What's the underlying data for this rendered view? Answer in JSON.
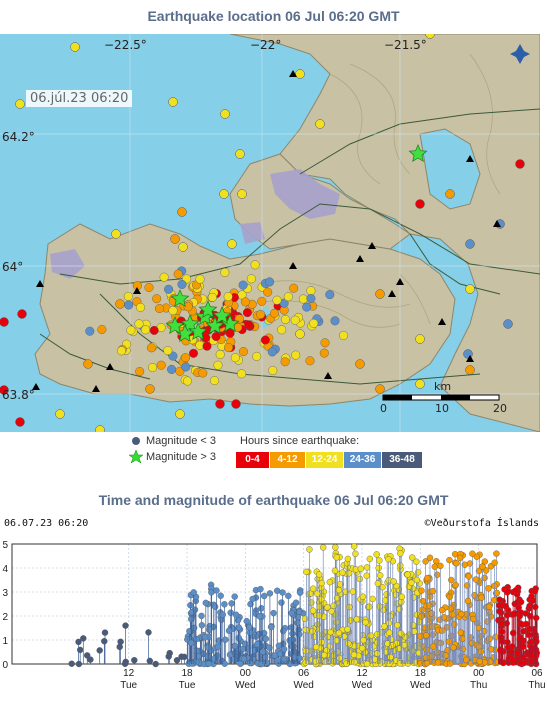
{
  "map": {
    "title": "Earthquake location   06 Jul 06:20 GMT",
    "timestamp": "06.júl.23  06:20",
    "lon_labels": [
      "−22.5°",
      "−22°",
      "−21.5°"
    ],
    "lat_labels": [
      "64.2°",
      "64°",
      "63.8°"
    ],
    "scale": {
      "unit": "km",
      "ticks": [
        "0",
        "10",
        "20"
      ]
    },
    "logo_icon": "vedurstofa-logo-icon"
  },
  "legend": {
    "small_label": "Magnitude < 3",
    "large_label": "Magnitude > 3",
    "hours_title": "Hours since earthquake:",
    "age_classes": [
      {
        "label": "0-4",
        "color": "#e8000b"
      },
      {
        "label": "4-12",
        "color": "#f59b00"
      },
      {
        "label": "12-24",
        "color": "#f0e020"
      },
      {
        "label": "24-36",
        "color": "#5b8fc9"
      },
      {
        "label": "36-48",
        "color": "#4a5a7a"
      }
    ]
  },
  "chart": {
    "title": "Time and magnitude of earthquake   06 Jul 06:20 GMT",
    "meta_left": "06.07.23 06:20",
    "meta_right": "©Veðurstofa Íslands"
  },
  "chart_data": {
    "type": "scatter",
    "ylim": [
      0,
      5
    ],
    "yticks": [
      "0",
      "1",
      "2",
      "3",
      "4",
      "5"
    ],
    "xticks": [
      {
        "hour": "12",
        "day": "Tue"
      },
      {
        "hour": "18",
        "day": "Tue"
      },
      {
        "hour": "00",
        "day": "Wed"
      },
      {
        "hour": "06",
        "day": "Wed"
      },
      {
        "hour": "12",
        "day": "Wed"
      },
      {
        "hour": "18",
        "day": "Wed"
      },
      {
        "hour": "00",
        "day": "Thu"
      },
      {
        "hour": "06",
        "day": "Thu"
      }
    ],
    "x_range_hours": [
      -54,
      0
    ],
    "series": [
      {
        "age": "36-48",
        "color": "#4a5a7a",
        "t_range": [
          -48,
          -36
        ],
        "count": 24,
        "max_mag": 1.6
      },
      {
        "age": "24-36",
        "color": "#5b8fc9",
        "t_range": [
          -36,
          -24
        ],
        "count": 220,
        "max_mag": 3.3
      },
      {
        "age": "12-24",
        "color": "#f0e020",
        "t_range": [
          -24,
          -12
        ],
        "count": 320,
        "max_mag": 4.9
      },
      {
        "age": "4-12",
        "color": "#f59b00",
        "t_range": [
          -12,
          -4
        ],
        "count": 200,
        "max_mag": 4.6
      },
      {
        "age": "0-4",
        "color": "#e8000b",
        "t_range": [
          -4,
          0
        ],
        "count": 140,
        "max_mag": 3.2
      }
    ]
  }
}
